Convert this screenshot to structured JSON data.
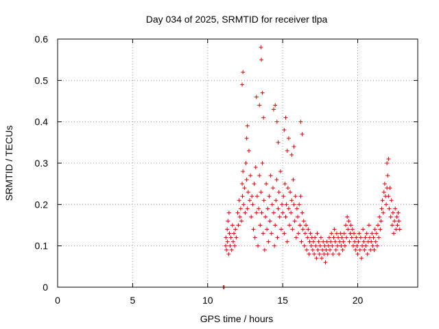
{
  "chart_data": {
    "type": "scatter",
    "title": "Day 034 of 2025, SRMTID for receiver tlpa",
    "xlabel": "GPS time / hours",
    "ylabel": "SRMTID / TECUs",
    "xlim": [
      0,
      24
    ],
    "ylim": [
      0,
      0.6
    ],
    "xticks": [
      0,
      5,
      10,
      15,
      20
    ],
    "xtick_labels": [
      "0",
      "5",
      "10",
      "15",
      "20"
    ],
    "yticks": [
      0,
      0.1,
      0.2,
      0.3,
      0.4,
      0.5,
      0.6
    ],
    "ytick_labels": [
      "0",
      "0.1",
      "0.2",
      "0.3",
      "0.4",
      "0.5",
      "0.6"
    ],
    "grid": true,
    "marker": "+",
    "color": "#e00000",
    "series": [
      {
        "name": "SRMTID",
        "x": [
          11.05,
          11.1,
          11.2,
          11.22,
          11.25,
          11.3,
          11.32,
          11.35,
          11.4,
          11.42,
          11.45,
          11.5,
          11.55,
          11.6,
          11.65,
          11.7,
          11.75,
          11.8,
          11.85,
          11.9,
          12.0,
          12.05,
          12.1,
          12.15,
          12.2,
          12.25,
          12.3,
          12.32,
          12.35,
          12.4,
          12.45,
          12.5,
          12.55,
          12.6,
          12.65,
          12.7,
          12.75,
          12.8,
          12.85,
          12.9,
          12.95,
          13.0,
          13.05,
          13.1,
          13.15,
          13.2,
          13.25,
          13.3,
          13.35,
          13.4,
          13.45,
          13.5,
          13.55,
          13.6,
          13.65,
          13.7,
          13.75,
          13.8,
          13.85,
          13.9,
          13.95,
          14.0,
          14.05,
          14.1,
          14.15,
          14.2,
          14.25,
          14.3,
          14.35,
          14.4,
          14.45,
          14.5,
          14.55,
          14.6,
          14.65,
          14.7,
          14.75,
          14.8,
          14.85,
          14.9,
          14.95,
          15.0,
          15.05,
          15.1,
          15.15,
          15.2,
          15.25,
          15.3,
          15.35,
          15.4,
          15.45,
          15.5,
          15.55,
          15.6,
          15.65,
          15.7,
          15.75,
          15.8,
          15.85,
          15.9,
          15.95,
          16.0,
          16.05,
          16.1,
          16.15,
          16.2,
          16.25,
          16.3,
          16.35,
          16.4,
          16.45,
          16.5,
          16.55,
          16.6,
          16.65,
          16.7,
          16.75,
          16.8,
          16.85,
          16.9,
          16.95,
          17.0,
          17.05,
          17.1,
          17.15,
          17.2,
          17.25,
          17.3,
          17.35,
          17.4,
          17.45,
          17.5,
          17.55,
          17.6,
          17.65,
          17.7,
          17.75,
          17.8,
          17.85,
          17.9,
          17.95,
          18.0,
          18.05,
          18.1,
          18.15,
          18.2,
          18.25,
          18.3,
          18.35,
          18.4,
          18.45,
          18.5,
          18.55,
          18.6,
          18.65,
          18.7,
          18.75,
          18.8,
          18.85,
          18.9,
          18.95,
          19.0,
          19.05,
          19.1,
          19.15,
          19.2,
          19.25,
          19.3,
          19.35,
          19.4,
          19.45,
          19.5,
          19.55,
          19.6,
          19.65,
          19.7,
          19.75,
          19.8,
          19.85,
          19.9,
          19.95,
          20.0,
          20.05,
          20.1,
          20.15,
          20.2,
          20.25,
          20.3,
          20.35,
          20.4,
          20.45,
          20.5,
          20.55,
          20.6,
          20.65,
          20.7,
          20.75,
          20.8,
          20.85,
          20.9,
          20.95,
          21.0,
          21.05,
          21.1,
          21.15,
          21.2,
          21.25,
          21.3,
          21.35,
          21.4,
          21.45,
          21.5,
          21.55,
          21.6,
          21.65,
          21.7,
          21.75,
          21.8,
          21.85,
          21.9,
          21.95,
          22.0,
          22.05,
          22.1,
          22.15,
          22.2,
          22.25,
          22.3,
          22.35,
          22.4,
          22.45,
          22.5,
          22.55,
          22.6,
          22.65,
          22.7,
          22.75,
          22.8,
          12.3,
          12.35,
          12.6,
          12.65,
          13.25,
          13.45,
          13.55,
          13.58,
          13.65,
          13.72,
          14.4,
          14.5,
          14.62,
          14.7,
          15.1,
          15.2,
          15.3,
          15.4,
          15.6,
          15.75,
          16.2,
          16.3,
          21.95,
          22.05
        ],
        "y": [
          0.0,
          0.0,
          0.1,
          0.12,
          0.09,
          0.14,
          0.11,
          0.16,
          0.08,
          0.18,
          0.13,
          0.1,
          0.12,
          0.09,
          0.15,
          0.11,
          0.13,
          0.1,
          0.14,
          0.12,
          0.18,
          0.15,
          0.21,
          0.17,
          0.19,
          0.16,
          0.25,
          0.22,
          0.28,
          0.2,
          0.24,
          0.18,
          0.3,
          0.26,
          0.19,
          0.23,
          0.33,
          0.21,
          0.27,
          0.17,
          0.22,
          0.2,
          0.14,
          0.25,
          0.12,
          0.29,
          0.18,
          0.22,
          0.1,
          0.19,
          0.27,
          0.15,
          0.23,
          0.18,
          0.3,
          0.13,
          0.21,
          0.09,
          0.17,
          0.25,
          0.14,
          0.19,
          0.11,
          0.22,
          0.16,
          0.27,
          0.13,
          0.2,
          0.24,
          0.18,
          0.1,
          0.15,
          0.21,
          0.26,
          0.12,
          0.19,
          0.23,
          0.17,
          0.28,
          0.14,
          0.2,
          0.18,
          0.22,
          0.13,
          0.25,
          0.17,
          0.2,
          0.11,
          0.24,
          0.19,
          0.15,
          0.23,
          0.18,
          0.21,
          0.14,
          0.26,
          0.2,
          0.16,
          0.22,
          0.12,
          0.19,
          0.17,
          0.13,
          0.2,
          0.15,
          0.22,
          0.11,
          0.18,
          0.14,
          0.16,
          0.1,
          0.13,
          0.15,
          0.09,
          0.12,
          0.14,
          0.08,
          0.11,
          0.13,
          0.1,
          0.12,
          0.09,
          0.11,
          0.08,
          0.12,
          0.1,
          0.07,
          0.13,
          0.09,
          0.11,
          0.08,
          0.1,
          0.12,
          0.07,
          0.09,
          0.11,
          0.08,
          0.1,
          0.06,
          0.09,
          0.11,
          0.08,
          0.1,
          0.12,
          0.09,
          0.11,
          0.13,
          0.1,
          0.08,
          0.12,
          0.14,
          0.11,
          0.09,
          0.13,
          0.1,
          0.12,
          0.08,
          0.11,
          0.13,
          0.1,
          0.12,
          0.09,
          0.11,
          0.13,
          0.1,
          0.15,
          0.12,
          0.17,
          0.14,
          0.16,
          0.11,
          0.13,
          0.15,
          0.12,
          0.14,
          0.1,
          0.13,
          0.11,
          0.09,
          0.12,
          0.1,
          0.08,
          0.11,
          0.13,
          0.09,
          0.12,
          0.07,
          0.1,
          0.14,
          0.11,
          0.09,
          0.12,
          0.1,
          0.13,
          0.08,
          0.11,
          0.15,
          0.12,
          0.09,
          0.11,
          0.13,
          0.1,
          0.12,
          0.09,
          0.14,
          0.11,
          0.13,
          0.1,
          0.15,
          0.12,
          0.17,
          0.14,
          0.16,
          0.19,
          0.21,
          0.18,
          0.23,
          0.25,
          0.22,
          0.2,
          0.24,
          0.27,
          0.22,
          0.19,
          0.24,
          0.17,
          0.21,
          0.15,
          0.18,
          0.13,
          0.16,
          0.19,
          0.14,
          0.17,
          0.15,
          0.18,
          0.16,
          0.14,
          0.49,
          0.52,
          0.36,
          0.39,
          0.46,
          0.44,
          0.58,
          0.55,
          0.47,
          0.41,
          0.43,
          0.44,
          0.4,
          0.35,
          0.38,
          0.41,
          0.33,
          0.36,
          0.32,
          0.34,
          0.4,
          0.37,
          0.3,
          0.31
        ]
      }
    ]
  }
}
